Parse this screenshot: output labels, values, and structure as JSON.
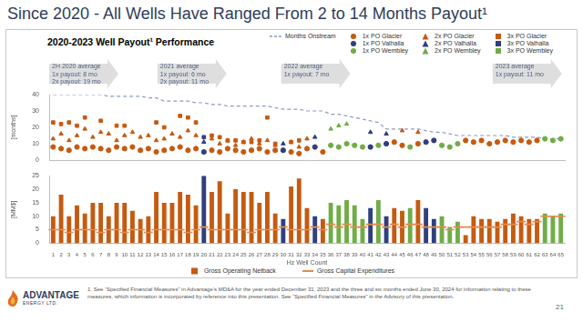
{
  "title": "Since 2020 - All Wells Have Ranged From 2 to 14 Months Payout¹",
  "footnote": "1. See “Specified Financial Measures” in Advantage’s MD&A for the year ended December 31, 2023 and the three and six months ended June 30, 2024 for information relating to these measures, which information is incorporated by reference into this presentation. See “Specified Financial Measures” in the Advisory of this presentation.",
  "page_number": "21",
  "logo": [
    "ADVANTAGE",
    "ENERGY LTD."
  ],
  "chart_data": [
    {
      "type": "scatter",
      "subtitle": "2020-2023 Well Payout¹ Performance",
      "y_label": "[months]",
      "xlim": [
        0.5,
        65.5
      ],
      "ylim": [
        0,
        40
      ],
      "yticks": [
        0,
        10,
        20,
        30,
        40
      ],
      "grid": false,
      "legend": "top",
      "tick_labels": "y",
      "annotations": [
        {
          "text": [
            "2H 2020 average",
            "1x payout: 8 mo",
            "2x payout: 19 mo"
          ]
        },
        {
          "text": [
            "2021 average",
            "1x payout: 6 mo",
            "2x payout: 11 mo"
          ]
        },
        {
          "text": [
            "2022 average",
            "1x payout: 7 mo"
          ]
        },
        {
          "text": [
            "2023 average",
            "1x payout: 11 mo"
          ]
        }
      ],
      "series": [
        {
          "name": "Months Onstream",
          "type": "line",
          "line_style": "dashed",
          "color": "#8f9bc4",
          "x": [
            1,
            2,
            3,
            4,
            5,
            6,
            7,
            8,
            9,
            10,
            11,
            12,
            13,
            14,
            15,
            16,
            17,
            18,
            19,
            20,
            21,
            22,
            23,
            24,
            25,
            26,
            27,
            28,
            29,
            30,
            31,
            32,
            33,
            34,
            35,
            36,
            37,
            38,
            39,
            40,
            41,
            42,
            43,
            44,
            45,
            46,
            47,
            48,
            49,
            50,
            51,
            52,
            53,
            54,
            55,
            56,
            57,
            58,
            59,
            60,
            61,
            62,
            63,
            64,
            65
          ],
          "values": [
            40,
            40,
            40,
            40,
            40,
            40,
            40,
            39,
            39,
            39,
            39,
            39,
            38,
            38,
            36,
            36,
            36,
            36,
            35,
            35,
            34,
            34,
            33,
            33,
            33,
            33,
            33,
            33,
            32,
            31,
            31,
            31,
            30,
            30,
            30,
            28,
            28,
            27,
            26,
            25,
            24,
            23,
            19,
            19,
            19,
            19,
            19,
            18,
            17,
            17,
            16,
            15,
            15,
            15,
            15,
            15,
            15,
            15,
            14,
            14,
            14,
            14,
            13,
            13,
            13
          ]
        },
        {
          "name": "1x PO Glacier",
          "type": "scatter",
          "marker": "circle",
          "color": "#c55a11",
          "x": [
            1,
            2,
            3,
            4,
            5,
            6,
            7,
            8,
            9,
            10,
            11,
            12,
            13,
            14,
            15,
            16,
            17,
            18,
            19,
            21,
            22,
            23,
            24,
            25,
            26,
            27,
            28,
            29,
            31,
            32,
            33,
            35,
            44,
            45,
            47,
            53,
            54,
            55,
            56,
            57,
            58,
            59,
            60,
            61,
            62
          ],
          "values": [
            8,
            7,
            6,
            8,
            7,
            8,
            7,
            6,
            8,
            7,
            8,
            6,
            7,
            5,
            6,
            7,
            8,
            6,
            7,
            6,
            5,
            7,
            6,
            5,
            6,
            7,
            5,
            6,
            5,
            4,
            7,
            5,
            11,
            9,
            10,
            12,
            11,
            12,
            10,
            11,
            12,
            11,
            12,
            11,
            12
          ]
        },
        {
          "name": "1x PO Valhalla",
          "type": "scatter",
          "marker": "circle",
          "color": "#2f3f7f",
          "x": [
            20,
            30,
            34,
            41,
            43,
            48,
            49
          ],
          "values": [
            5,
            6,
            8,
            8,
            10,
            11,
            12
          ]
        },
        {
          "name": "1x PO Wembley",
          "type": "scatter",
          "marker": "circle",
          "color": "#70ad47",
          "x": [
            36,
            37,
            38,
            39,
            40,
            42,
            46,
            50,
            51,
            52,
            63,
            64,
            65
          ],
          "values": [
            9,
            8,
            10,
            9,
            8,
            9,
            8,
            9,
            8,
            10,
            13,
            12,
            13
          ]
        },
        {
          "name": "2x PO Glacier",
          "type": "scatter",
          "marker": "triangle",
          "color": "#c55a11",
          "x": [
            1,
            2,
            3,
            4,
            5,
            6,
            7,
            8,
            9,
            10,
            11,
            12,
            13,
            14,
            15,
            16,
            17,
            18,
            19,
            21,
            22,
            23,
            24,
            25,
            26,
            27,
            28,
            29,
            31,
            32,
            33,
            45,
            47
          ],
          "values": [
            13,
            16,
            12,
            15,
            19,
            14,
            17,
            16,
            12,
            15,
            17,
            14,
            15,
            12,
            13,
            16,
            14,
            18,
            15,
            13,
            10,
            12,
            9,
            11,
            13,
            10,
            12,
            9,
            11,
            8,
            13,
            18,
            17
          ]
        },
        {
          "name": "2x PO Valhalla",
          "type": "scatter",
          "marker": "triangle",
          "color": "#2f3f7f",
          "x": [
            20,
            30,
            34,
            41,
            43
          ],
          "values": [
            11,
            10,
            14,
            17,
            16
          ]
        },
        {
          "name": "2x PO Wembley",
          "type": "scatter",
          "marker": "triangle",
          "color": "#70ad47",
          "x": [
            36,
            37,
            38
          ],
          "values": [
            19,
            21,
            22
          ]
        },
        {
          "name": "3x PO Glacier",
          "type": "scatter",
          "marker": "square",
          "color": "#c55a11",
          "x": [
            1,
            2,
            3,
            4,
            5,
            7,
            9,
            10,
            14,
            15,
            17,
            18,
            19,
            21,
            22,
            23,
            24,
            25,
            26,
            27,
            28,
            29,
            31,
            32
          ],
          "values": [
            23,
            22,
            23,
            21,
            26,
            24,
            21,
            21,
            23,
            20,
            27,
            26,
            23,
            15,
            14,
            12,
            12,
            11,
            11,
            12,
            26,
            10,
            11,
            12
          ]
        },
        {
          "name": "3x PO Valhalla",
          "type": "scatter",
          "marker": "square",
          "color": "#2f3f7f",
          "x": [
            20
          ],
          "values": [
            14
          ]
        },
        {
          "name": "3x PO Wembley",
          "type": "scatter",
          "marker": "square",
          "color": "#70ad47",
          "x": [],
          "values": []
        }
      ]
    },
    {
      "type": "bar",
      "x_label": "Hz Well Count",
      "y_label": "[MM$]",
      "categories": [
        1,
        2,
        3,
        4,
        5,
        6,
        7,
        8,
        9,
        10,
        11,
        12,
        13,
        14,
        15,
        16,
        17,
        18,
        19,
        20,
        21,
        22,
        23,
        24,
        25,
        26,
        27,
        28,
        29,
        30,
        31,
        32,
        33,
        34,
        35,
        36,
        37,
        38,
        39,
        40,
        41,
        42,
        43,
        44,
        45,
        46,
        47,
        48,
        49,
        50,
        51,
        52,
        53,
        54,
        55,
        56,
        57,
        58,
        59,
        60,
        61,
        62,
        63,
        64,
        65
      ],
      "ylim": [
        0,
        25
      ],
      "yticks": [
        0,
        5,
        10,
        15,
        20,
        25
      ],
      "grid": false,
      "legend": "bottom",
      "series": [
        {
          "name": "Gross Operating Netback",
          "type": "bar",
          "color": "#c55a11",
          "colors": [
            "#c55a11",
            "#c55a11",
            "#c55a11",
            "#c55a11",
            "#c55a11",
            "#c55a11",
            "#c55a11",
            "#c55a11",
            "#c55a11",
            "#c55a11",
            "#c55a11",
            "#c55a11",
            "#c55a11",
            "#c55a11",
            "#c55a11",
            "#c55a11",
            "#c55a11",
            "#c55a11",
            "#c55a11",
            "#2f3f7f",
            "#c55a11",
            "#c55a11",
            "#c55a11",
            "#c55a11",
            "#c55a11",
            "#c55a11",
            "#c55a11",
            "#c55a11",
            "#c55a11",
            "#2f3f7f",
            "#c55a11",
            "#c55a11",
            "#c55a11",
            "#2f3f7f",
            "#c55a11",
            "#70ad47",
            "#70ad47",
            "#70ad47",
            "#70ad47",
            "#70ad47",
            "#2f3f7f",
            "#70ad47",
            "#2f3f7f",
            "#c55a11",
            "#c55a11",
            "#70ad47",
            "#c55a11",
            "#2f3f7f",
            "#2f3f7f",
            "#70ad47",
            "#70ad47",
            "#70ad47",
            "#c55a11",
            "#c55a11",
            "#c55a11",
            "#c55a11",
            "#c55a11",
            "#c55a11",
            "#c55a11",
            "#c55a11",
            "#c55a11",
            "#c55a11",
            "#70ad47",
            "#70ad47",
            "#70ad47"
          ],
          "values": [
            10,
            18,
            10,
            14,
            11,
            15,
            15,
            10,
            15,
            15,
            12,
            9,
            10,
            19,
            15,
            15,
            19,
            18,
            14,
            25,
            19,
            23,
            11,
            20,
            19,
            19,
            15,
            19,
            11,
            9,
            21,
            24,
            13,
            10,
            9,
            15,
            14,
            16,
            14,
            9,
            13,
            16,
            10,
            13,
            12,
            13,
            16,
            13,
            9,
            10,
            6,
            8,
            3,
            10,
            9,
            9,
            8,
            9,
            11,
            10,
            9,
            9,
            11,
            10,
            11
          ]
        },
        {
          "name": "Gross Capital Expenditures",
          "type": "line",
          "line_style": "none",
          "marker": "dash",
          "color": "#e58a4c",
          "values": [
            5,
            5,
            4,
            5,
            5,
            5,
            4,
            5,
            5,
            4,
            5,
            5,
            4,
            5,
            5,
            5,
            5,
            4,
            5,
            6,
            5,
            5,
            5,
            5,
            5,
            4,
            5,
            5,
            5,
            6,
            5,
            5,
            5,
            6,
            5,
            7,
            6,
            7,
            6,
            6,
            7,
            7,
            6,
            7,
            6,
            7,
            7,
            6,
            6,
            6,
            5,
            6,
            6,
            6,
            6,
            6,
            6,
            7,
            7,
            8,
            7,
            8,
            10,
            10,
            10
          ]
        }
      ]
    }
  ]
}
